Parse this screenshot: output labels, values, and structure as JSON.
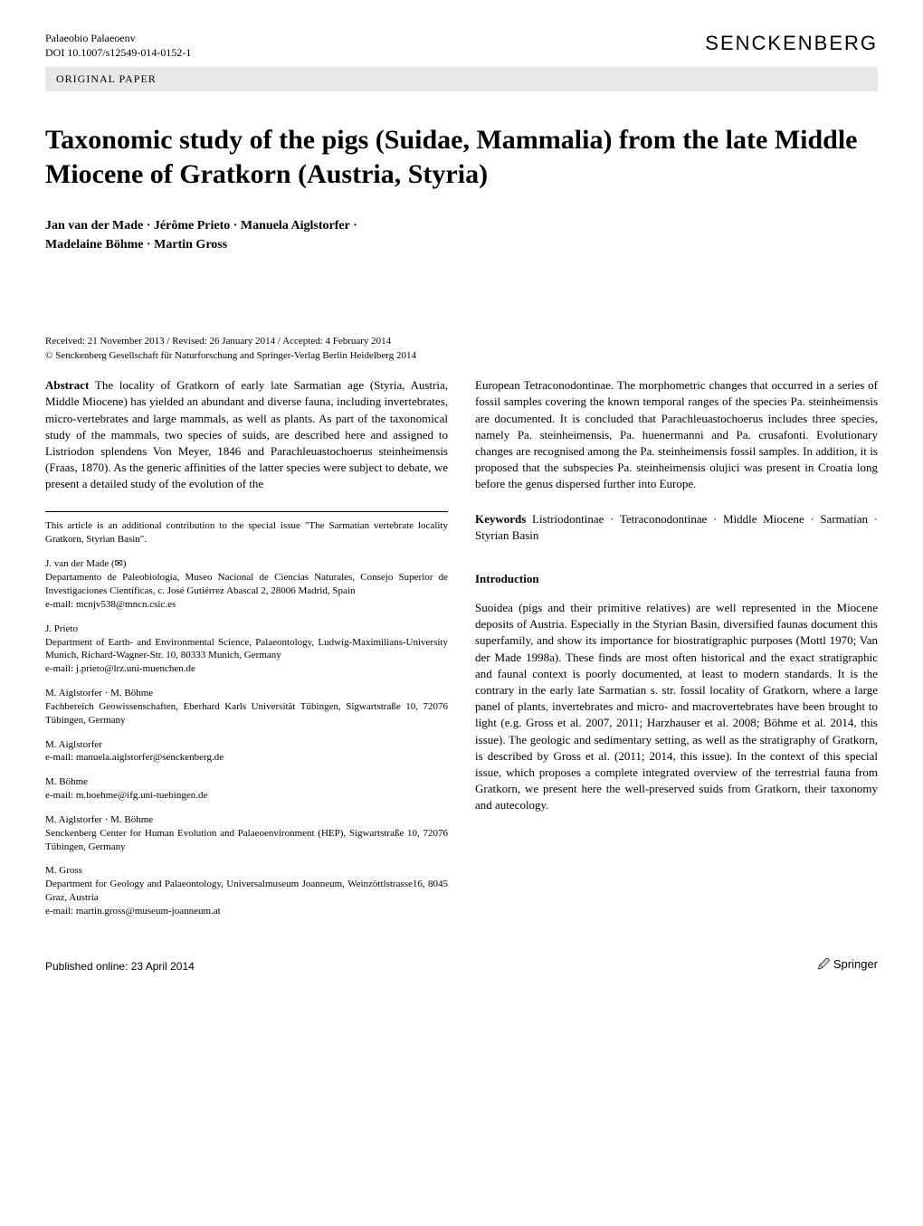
{
  "header": {
    "journal_name": "Palaeobio Palaeoenv",
    "doi": "DOI 10.1007/s12549-014-0152-1",
    "publisher": "SENCKENBERG"
  },
  "paper_type": "ORIGINAL PAPER",
  "title": "Taxonomic study of the pigs (Suidae, Mammalia) from the late Middle Miocene of Gratkorn (Austria, Styria)",
  "authors_line1": "Jan van der Made · Jérôme Prieto · Manuela Aiglstorfer ·",
  "authors_line2": "Madelaine Böhme · Martin Gross",
  "dates": {
    "received": "Received: 21 November 2013 / Revised: 26 January 2014 / Accepted: 4 February 2014",
    "copyright": "© Senckenberg Gesellschaft für Naturforschung and Springer-Verlag Berlin Heidelberg 2014"
  },
  "abstract": {
    "label": "Abstract",
    "text_left": "The locality of Gratkorn of early late Sarmatian age (Styria, Austria, Middle Miocene) has yielded an abundant and diverse fauna, including invertebrates, micro-vertebrates and large mammals, as well as plants. As part of the taxonomical study of the mammals, two species of suids, are described here and assigned to Listriodon splendens Von Meyer, 1846 and Parachleuastochoerus steinheimensis (Fraas, 1870). As the generic affinities of the latter species were subject to debate, we present a detailed study of the evolution of the",
    "text_right": "European Tetraconodontinae. The morphometric changes that occurred in a series of fossil samples covering the known temporal ranges of the species Pa. steinheimensis are documented. It is concluded that Parachleuastochoerus includes three species, namely Pa. steinheimensis, Pa. huenermanni and Pa. crusafonti. Evolutionary changes are recognised among the Pa. steinheimensis fossil samples. In addition, it is proposed that the subspecies Pa. steinheimensis olujici was present in Croatia long before the genus dispersed further into Europe."
  },
  "special_issue_note": "This article is an additional contribution to the special issue \"The Sarmatian vertebrate locality Gratkorn, Styrian Basin\".",
  "affiliations": [
    {
      "name": "J. van der Made (✉)",
      "dept": "Departamento de Paleobiología, Museo Nacional de Ciencias Naturales, Consejo Superior de Investigaciones Científicas, c. José Gutiérrez Abascal 2, 28006 Madrid, Spain",
      "email": "e-mail: mcnjv538@mncn.csic.es"
    },
    {
      "name": "J. Prieto",
      "dept": "Department of Earth- and Environmental Science, Palaeontology, Ludwig-Maximilians-University Munich, Richard-Wagner-Str. 10, 80333 Munich, Germany",
      "email": "e-mail: j.prieto@lrz.uni-muenchen.de"
    },
    {
      "name": "M. Aiglstorfer · M. Böhme",
      "dept": "Fachbereich Geowissenschaften, Eberhard Karls Universität Tübingen, Sigwartstraße 10, 72076 Tübingen, Germany",
      "email": ""
    },
    {
      "name": "M. Aiglstorfer",
      "dept": "",
      "email": "e-mail: manuela.aiglstorfer@senckenberg.de"
    },
    {
      "name": "M. Böhme",
      "dept": "",
      "email": "e-mail: m.boehme@ifg.uni-tuebingen.de"
    },
    {
      "name": "M. Aiglstorfer · M. Böhme",
      "dept": "Senckenberg Center for Human Evolution and Palaeoenvironment (HEP), Sigwartstraße 10, 72076 Tübingen, Germany",
      "email": ""
    },
    {
      "name": "M. Gross",
      "dept": "Department for Geology and Palaeontology, Universalmuseum Joanneum, Weinzöttlstrasse16, 8045 Graz, Austria",
      "email": "e-mail: martin.gross@museum-joanneum.at"
    }
  ],
  "keywords": {
    "label": "Keywords",
    "text": "Listriodontinae · Tetraconodontinae · Middle Miocene · Sarmatian · Styrian Basin"
  },
  "introduction": {
    "heading": "Introduction",
    "text": "Suoidea (pigs and their primitive relatives) are well represented in the Miocene deposits of Austria. Especially in the Styrian Basin, diversified faunas document this superfamily, and show its importance for biostratigraphic purposes (Mottl 1970; Van der Made 1998a). These finds are most often historical and the exact stratigraphic and faunal context is poorly documented, at least to modern standards. It is the contrary in the early late Sarmatian s. str. fossil locality of Gratkorn, where a large panel of plants, invertebrates and micro- and macrovertebrates have been brought to light (e.g. Gross et al. 2007, 2011; Harzhauser et al. 2008; Böhme et al. 2014, this issue). The geologic and sedimentary setting, as well as the stratigraphy of Gratkorn, is described by Gross et al. (2011; 2014, this issue). In the context of this special issue, which proposes a complete integrated overview of the terrestrial fauna from Gratkorn, we present here the well-preserved suids from Gratkorn, their taxonomy and autecology."
  },
  "footer": {
    "published": "Published online: 23 April 2014",
    "springer": "🖉 Springer"
  },
  "colors": {
    "background": "#ffffff",
    "text": "#000000",
    "banner_bg": "#e8e8e8",
    "link_color": "#0000cc"
  },
  "typography": {
    "body_font": "Times New Roman",
    "title_fontsize": 30,
    "body_fontsize": 13,
    "small_fontsize": 11,
    "header_fontsize": 12
  }
}
